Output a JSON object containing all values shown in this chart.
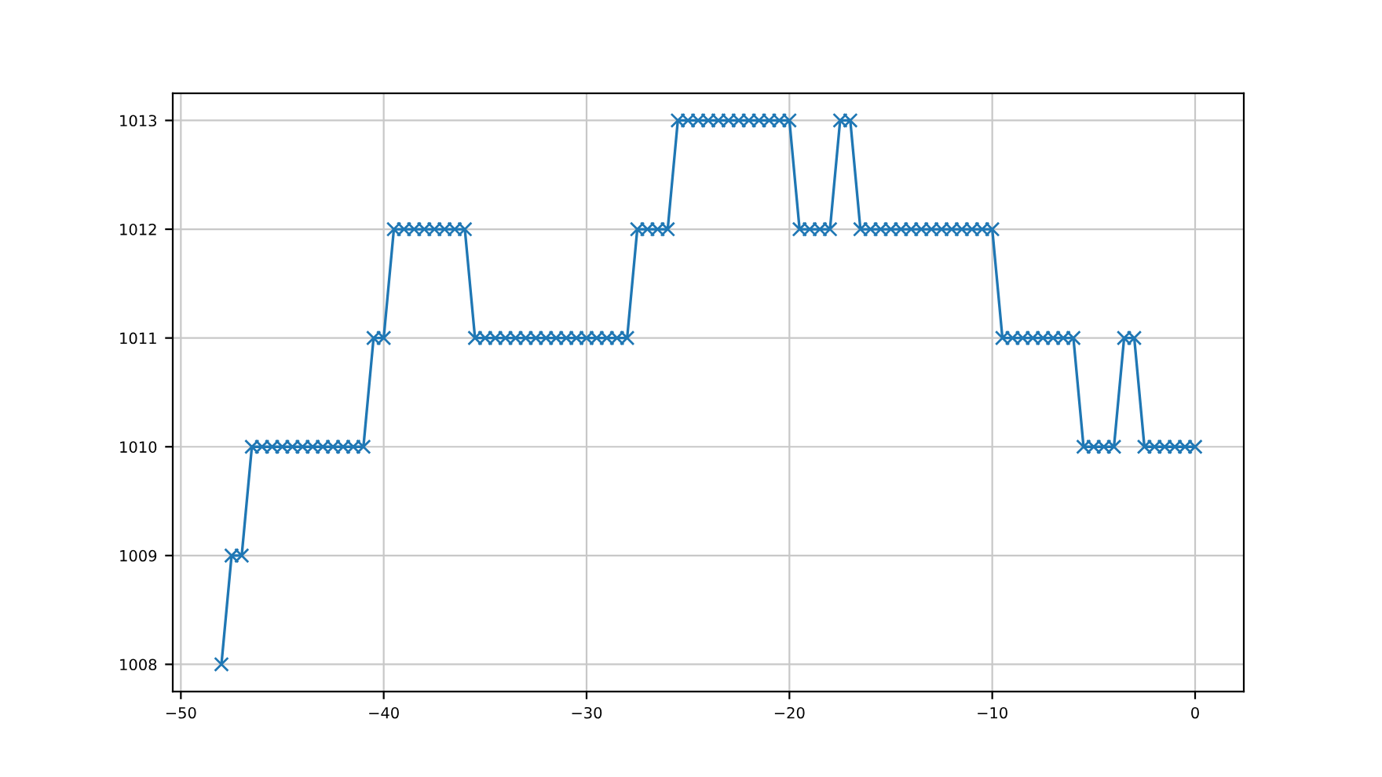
{
  "chart_data": {
    "type": "line",
    "x": [
      -48,
      -47.5,
      -47,
      -46.5,
      -46,
      -45.5,
      -45,
      -44.5,
      -44,
      -43.5,
      -43,
      -42.5,
      -42,
      -41.5,
      -41,
      -40.5,
      -40,
      -39.5,
      -39,
      -38.5,
      -38,
      -37.5,
      -37,
      -36.5,
      -36,
      -35.5,
      -35,
      -34.5,
      -34,
      -33.5,
      -33,
      -32.5,
      -32,
      -31.5,
      -31,
      -30.5,
      -30,
      -29.5,
      -29,
      -28.5,
      -28,
      -27.5,
      -27,
      -26.5,
      -26,
      -25.5,
      -25,
      -24.5,
      -24,
      -23.5,
      -23,
      -22.5,
      -22,
      -21.5,
      -21,
      -20.5,
      -20,
      -19.5,
      -19,
      -18.5,
      -18,
      -17.5,
      -17,
      -16.5,
      -16,
      -15.5,
      -15,
      -14.5,
      -14,
      -13.5,
      -13,
      -12.5,
      -12,
      -11.5,
      -11,
      -10.5,
      -10,
      -9.5,
      -9,
      -8.5,
      -8,
      -7.5,
      -7,
      -6.5,
      -6,
      -5.5,
      -5,
      -4.5,
      -4,
      -3.5,
      -3,
      -2.5,
      -2,
      -1.5,
      -1,
      -0.5,
      0
    ],
    "series": [
      {
        "color": "#1f77b4",
        "values": [
          1008,
          1009,
          1009,
          1010,
          1010,
          1010,
          1010,
          1010,
          1010,
          1010,
          1010,
          1010,
          1010,
          1010,
          1010,
          1011,
          1011,
          1012,
          1012,
          1012,
          1012,
          1012,
          1012,
          1012,
          1012,
          1011,
          1011,
          1011,
          1011,
          1011,
          1011,
          1011,
          1011,
          1011,
          1011,
          1011,
          1011,
          1011,
          1011,
          1011,
          1011,
          1012,
          1012,
          1012,
          1012,
          1013,
          1013,
          1013,
          1013,
          1013,
          1013,
          1013,
          1013,
          1013,
          1013,
          1013,
          1013,
          1012,
          1012,
          1012,
          1012,
          1013,
          1013,
          1012,
          1012,
          1012,
          1012,
          1012,
          1012,
          1012,
          1012,
          1012,
          1012,
          1012,
          1012,
          1012,
          1012,
          1011,
          1011,
          1011,
          1011,
          1011,
          1011,
          1011,
          1011,
          1010,
          1010,
          1010,
          1010,
          1011,
          1011,
          1010,
          1010,
          1010,
          1010,
          1010,
          1010
        ]
      }
    ],
    "xlim": [
      -50.4,
      2.4
    ],
    "ylim": [
      1007.75,
      1013.25
    ],
    "xticks": [
      {
        "value": -50,
        "label": "−50"
      },
      {
        "value": -40,
        "label": "−40"
      },
      {
        "value": -30,
        "label": "−30"
      },
      {
        "value": -20,
        "label": "−20"
      },
      {
        "value": -10,
        "label": "−10"
      },
      0
    ],
    "yticks": [
      1008,
      1009,
      1010,
      1011,
      1012,
      1013
    ],
    "grid": true,
    "marker": "cross",
    "line_style": "solid"
  }
}
